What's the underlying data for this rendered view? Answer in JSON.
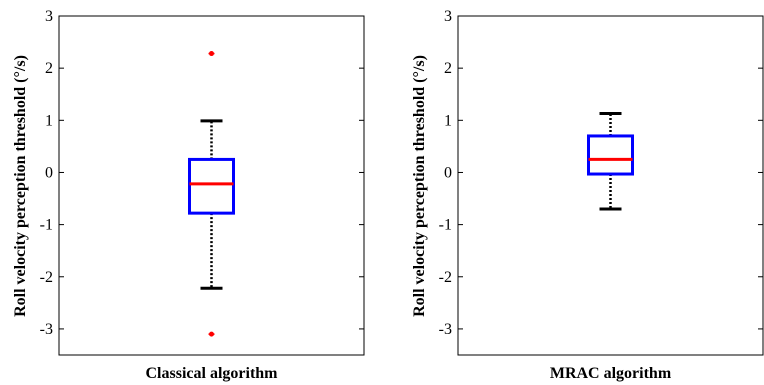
{
  "chart_data": [
    {
      "type": "box",
      "title": "",
      "xlabel": "Classical algorithm",
      "ylabel": "Roll velocity perception threshold (°/s)",
      "ylim": [
        -3.5,
        3
      ],
      "yticks": [
        "-3",
        "-2",
        "-1",
        "0",
        "1",
        "2",
        "3"
      ],
      "grid": false,
      "box": {
        "whisker_low": -2.22,
        "q1": -0.78,
        "median": -0.22,
        "q3": 0.25,
        "whisker_high": 0.99,
        "outliers": [
          2.28,
          -3.1
        ]
      }
    },
    {
      "type": "box",
      "title": "",
      "xlabel": "MRAC algorithm",
      "ylabel": "Roll velocity perception threshold (°/s)",
      "ylim": [
        -3.5,
        3
      ],
      "yticks": [
        "-3",
        "-2",
        "-1",
        "0",
        "1",
        "2",
        "3"
      ],
      "grid": false,
      "box": {
        "whisker_low": -0.7,
        "q1": -0.03,
        "median": 0.25,
        "q3": 0.7,
        "whisker_high": 1.13,
        "outliers": []
      }
    }
  ],
  "colors": {
    "box": "#0000ff",
    "median": "#ff0000",
    "whisker": "#000000",
    "outlier": "#ff0000"
  }
}
